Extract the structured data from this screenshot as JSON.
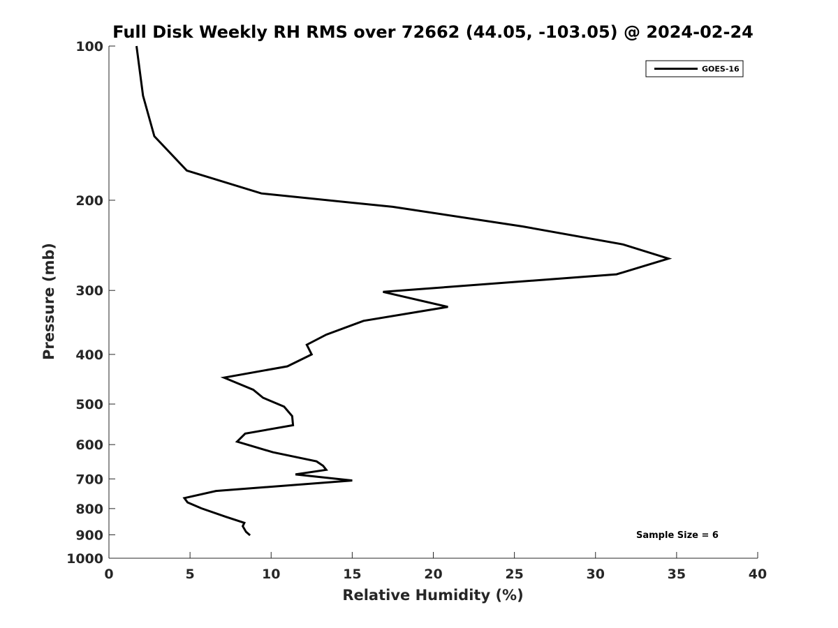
{
  "chart_data": {
    "type": "line",
    "title": "Full Disk Weekly RH RMS over 72662 (44.05, -103.05) @ 2024-02-24",
    "xlabel": "Relative Humidity (%)",
    "ylabel": "Pressure (mb)",
    "xlim": [
      0,
      40
    ],
    "ylim": [
      100,
      1000
    ],
    "y_scale": "log",
    "y_reversed": true,
    "x_ticks": [
      0,
      5,
      10,
      15,
      20,
      25,
      30,
      35,
      40
    ],
    "y_ticks": [
      100,
      200,
      300,
      400,
      500,
      600,
      700,
      800,
      900,
      1000
    ],
    "grid": false,
    "legend_position": "top-right",
    "annotation": "Sample Size = 6",
    "series": [
      {
        "name": "GOES-16",
        "color": "#000000",
        "points": [
          [
            1.7,
            100
          ],
          [
            2.1,
            125
          ],
          [
            2.8,
            150
          ],
          [
            4.8,
            175
          ],
          [
            9.4,
            194
          ],
          [
            17.5,
            206
          ],
          [
            25.5,
            225
          ],
          [
            31.7,
            244
          ],
          [
            34.5,
            260
          ],
          [
            31.3,
            279
          ],
          [
            16.9,
            302
          ],
          [
            20.9,
            323
          ],
          [
            15.7,
            344
          ],
          [
            13.4,
            366
          ],
          [
            12.2,
            383
          ],
          [
            12.5,
            400
          ],
          [
            11.0,
            422
          ],
          [
            7.1,
            444
          ],
          [
            8.9,
            469
          ],
          [
            9.5,
            486
          ],
          [
            10.8,
            506
          ],
          [
            11.3,
            528
          ],
          [
            11.35,
            550
          ],
          [
            8.4,
            571
          ],
          [
            7.9,
            592
          ],
          [
            10.1,
            621
          ],
          [
            12.8,
            647
          ],
          [
            13.2,
            660
          ],
          [
            13.4,
            672
          ],
          [
            11.5,
            686
          ],
          [
            15.0,
            705
          ],
          [
            6.6,
            739
          ],
          [
            4.65,
            763
          ],
          [
            4.85,
            778
          ],
          [
            5.7,
            799
          ],
          [
            7.2,
            830
          ],
          [
            8.35,
            853
          ],
          [
            8.25,
            866
          ],
          [
            8.45,
            888
          ],
          [
            8.7,
            902
          ]
        ]
      }
    ]
  }
}
